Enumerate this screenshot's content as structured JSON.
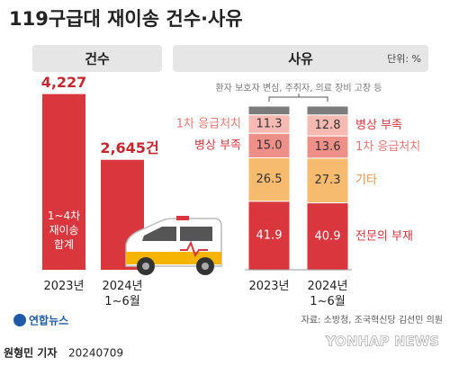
{
  "title": "119구급대 재이송 건수·사유",
  "chart_data": [
    {
      "type": "bar",
      "title": "건수",
      "annotation": "1~4차 재이송 합계",
      "categories": [
        "2023년",
        "2024년 1~6월"
      ],
      "values": [
        4227,
        2645
      ],
      "value_labels": [
        "4,227",
        "2,645건"
      ],
      "color": "#d9363e",
      "ylim": [
        0,
        4500
      ]
    },
    {
      "type": "stacked_bar",
      "title": "사유",
      "unit": "단위: %",
      "annotation": "환자 보호자 변심, 주취자, 의료 장비 고장 등",
      "categories": [
        "2023년",
        "2024년 1~6월"
      ],
      "ylim": [
        0,
        100
      ],
      "series": [
        {
          "color": "#d9363e",
          "text_color": "#ffffff",
          "values": [
            41.9,
            40.9
          ],
          "value_labels": [
            "41.9",
            "40.9"
          ]
        },
        {
          "color": "#f6bb6e",
          "text_color": "#333333",
          "values": [
            26.5,
            27.3
          ],
          "value_labels": [
            "26.5",
            "27.3"
          ]
        },
        {
          "color": "#ee8f88",
          "text_color": "#333333",
          "values": [
            15.0,
            13.6
          ],
          "value_labels": [
            "15.0",
            "13.6"
          ]
        },
        {
          "color": "#f6bab2",
          "text_color": "#333333",
          "values": [
            11.3,
            12.8
          ],
          "value_labels": [
            "11.3",
            "12.8"
          ]
        },
        {
          "color": "#7b7b7b",
          "values": [
            5.3,
            5.4
          ]
        }
      ],
      "left_labels": [
        null,
        null,
        {
          "text": "병상 부족",
          "color": "#d9363e"
        },
        {
          "text": "1차 응급처치",
          "color": "#ea7770"
        },
        null
      ],
      "right_labels": [
        {
          "text": "전문의 부재",
          "color": "#d9363e"
        },
        {
          "text": "기타",
          "color": "#e9913a"
        },
        {
          "text": "1차 응급처치",
          "color": "#ea7770"
        },
        {
          "text": "병상 부족",
          "color": "#d9363e"
        },
        null
      ]
    }
  ],
  "footer": {
    "logo": "연합뉴스",
    "source": "자료: 소방청, 조국혁신당 김선민 의원",
    "reporter": "원형민 기자",
    "date": "20240709",
    "watermark": "YONHAP NEWS"
  }
}
